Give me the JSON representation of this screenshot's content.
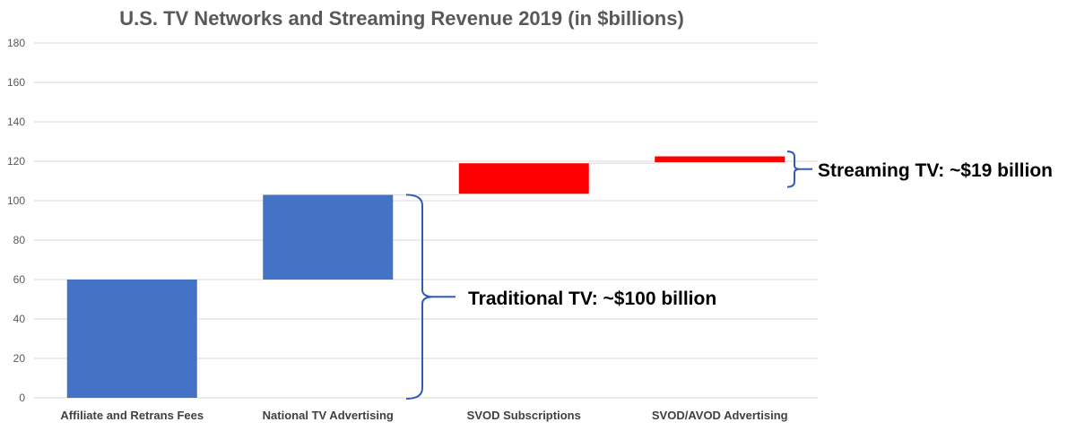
{
  "chart_data": {
    "type": "bar",
    "subtype": "waterfall",
    "title": "U.S. TV Networks and Streaming Revenue 2019 (in $billions)",
    "xlabel": "",
    "ylabel": "",
    "ylim": [
      0,
      180
    ],
    "yticks": [
      0,
      20,
      40,
      60,
      80,
      100,
      120,
      140,
      160,
      180
    ],
    "grid": true,
    "legend": "none",
    "categories": [
      "Affiliate and Retrans Fees",
      "National TV Advertising",
      "SVOD Subscriptions",
      "SVOD/AVOD Advertising"
    ],
    "bars": [
      {
        "category": "Affiliate and Retrans Fees",
        "start": 0,
        "end": 60,
        "value": 60,
        "color": "#4472C4"
      },
      {
        "category": "National TV Advertising",
        "start": 60,
        "end": 103,
        "value": 43,
        "color": "#4472C4"
      },
      {
        "category": "SVOD Subscriptions",
        "start": 103.5,
        "end": 119,
        "value": 15.5,
        "color": "#FF0000"
      },
      {
        "category": "SVOD/AVOD Advertising",
        "start": 119.5,
        "end": 122.5,
        "value": 3,
        "color": "#FF0000"
      }
    ],
    "annotations": [
      {
        "text": "Traditional TV:  ~$100 billion",
        "range": [
          0,
          103
        ],
        "bracket_color": "#2F5BB7"
      },
      {
        "text": "Streaming TV:  ~$19 billion",
        "range": [
          107,
          125
        ],
        "bracket_color": "#2F5BB7"
      }
    ]
  }
}
